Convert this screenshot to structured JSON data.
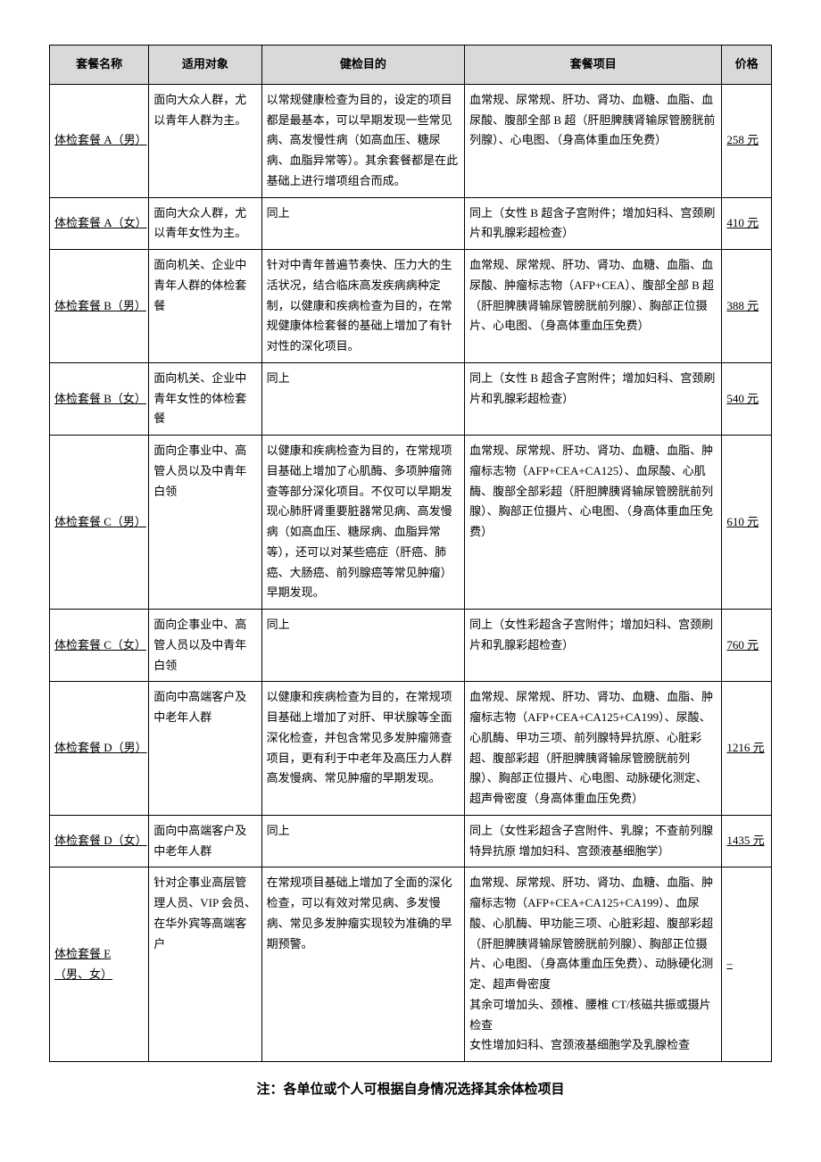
{
  "table": {
    "headers": {
      "name": "套餐名称",
      "target": "适用对象",
      "purpose": "健检目的",
      "items": "套餐项目",
      "price": "价格"
    },
    "rows": [
      {
        "name": "体检套餐 A（男）",
        "target": "面向大众人群，尤以青年人群为主。",
        "purpose": "以常规健康检查为目的，设定的项目都是最基本，可以早期发现一些常见病、高发慢性病（如高血压、糖尿病、血脂异常等）。其余套餐都是在此基础上进行增项组合而成。",
        "items": "血常规、尿常规、肝功、肾功、血糖、血脂、血尿酸、腹部全部 B 超（肝胆脾胰肾输尿管膀胱前列腺）、心电图、（身高体重血压免费）",
        "price": "258 元"
      },
      {
        "name": "体检套餐 A（女）",
        "target": "面向大众人群，尤以青年女性为主。",
        "purpose": "同上",
        "items": "同上（女性 B 超含子宫附件；增加妇科、宫颈刷片和乳腺彩超检查）",
        "price": "410 元"
      },
      {
        "name": "体检套餐 B（男）",
        "target": "面向机关、企业中青年人群的体检套餐",
        "purpose": "针对中青年普遍节奏快、压力大的生活状况，结合临床高发疾病病种定制，以健康和疾病检查为目的，在常规健康体检套餐的基础上增加了有针对性的深化项目。",
        "items": "血常规、尿常规、肝功、肾功、血糖、血脂、血尿酸、肿瘤标志物（AFP+CEA）、腹部全部 B 超（肝胆脾胰肾输尿管膀胱前列腺）、胸部正位摄片、心电图、（身高体重血压免费）",
        "price": "388 元"
      },
      {
        "name": "体检套餐 B（女）",
        "target": "面向机关、企业中青年女性的体检套餐",
        "purpose": "同上",
        "items": "同上（女性 B 超含子宫附件；增加妇科、宫颈刷片和乳腺彩超检查）",
        "price": "540 元"
      },
      {
        "name": "体检套餐 C（男）",
        "target": "面向企事业中、高管人员以及中青年白领",
        "purpose": "以健康和疾病检查为目的，在常规项目基础上增加了心肌酶、多项肿瘤筛查等部分深化项目。不仅可以早期发现心肺肝肾重要脏器常见病、高发慢病（如高血压、糖尿病、血脂异常等），还可以对某些癌症（肝癌、肺癌、大肠癌、前列腺癌等常见肿瘤）早期发现。",
        "items": "血常规、尿常规、肝功、肾功、血糖、血脂、肿瘤标志物（AFP+CEA+CA125）、血尿酸、心肌酶、腹部全部彩超（肝胆脾胰肾输尿管膀胱前列腺）、胸部正位摄片、心电图、（身高体重血压免费）",
        "price": "610 元"
      },
      {
        "name": "体检套餐 C（女）",
        "target": "面向企事业中、高管人员以及中青年白领",
        "purpose": "同上",
        "items": "同上（女性彩超含子宫附件；增加妇科、宫颈刷片和乳腺彩超检查）",
        "price": "760 元"
      },
      {
        "name": "体检套餐 D（男）",
        "target": "面向中高端客户及中老年人群",
        "purpose": "以健康和疾病检查为目的，在常规项目基础上增加了对肝、甲状腺等全面深化检查，并包含常见多发肿瘤筛查项目，更有利于中老年及高压力人群高发慢病、常见肿瘤的早期发现。",
        "items": "血常规、尿常规、肝功、肾功、血糖、血脂、肿瘤标志物（AFP+CEA+CA125+CA199）、尿酸、心肌酶、甲功三项、前列腺特异抗原、心脏彩超、腹部彩超（肝胆脾胰肾输尿管膀胱前列腺）、胸部正位摄片、心电图、动脉硬化测定、超声骨密度（身高体重血压免费）",
        "price": "1216 元"
      },
      {
        "name": "体检套餐 D（女）",
        "target": "面向中高端客户及中老年人群",
        "purpose": "同上",
        "items": "同上（女性彩超含子宫附件、乳腺；不查前列腺特异抗原 增加妇科、宫颈液基细胞学）",
        "price": "1435 元"
      },
      {
        "name": "体检套餐 E（男、女）",
        "target": "针对企事业高层管理人员、VIP 会员、在华外宾等高端客户",
        "purpose": "在常规项目基础上增加了全面的深化检查，可以有效对常见病、多发慢病、常见多发肿瘤实现较为准确的早期预警。",
        "items": "血常规、尿常规、肝功、肾功、血糖、血脂、肿瘤标志物（AFP+CEA+CA125+CA199）、血尿酸、心肌酶、甲功能三项、心脏彩超、腹部彩超（肝胆脾胰肾输尿管膀胱前列腺）、胸部正位摄片、心电图、（身高体重血压免费）、动脉硬化测定、超声骨密度\n其余可增加头、颈椎、腰椎 CT/核磁共振或摄片检查\n女性增加妇科、宫颈液基细胞学及乳腺检查",
        "price": "–"
      }
    ]
  },
  "footer_note": "注：各单位或个人可根据自身情况选择其余体检项目",
  "colors": {
    "header_bg": "#d9d9d9",
    "border": "#000000",
    "text": "#000000",
    "background": "#ffffff"
  }
}
